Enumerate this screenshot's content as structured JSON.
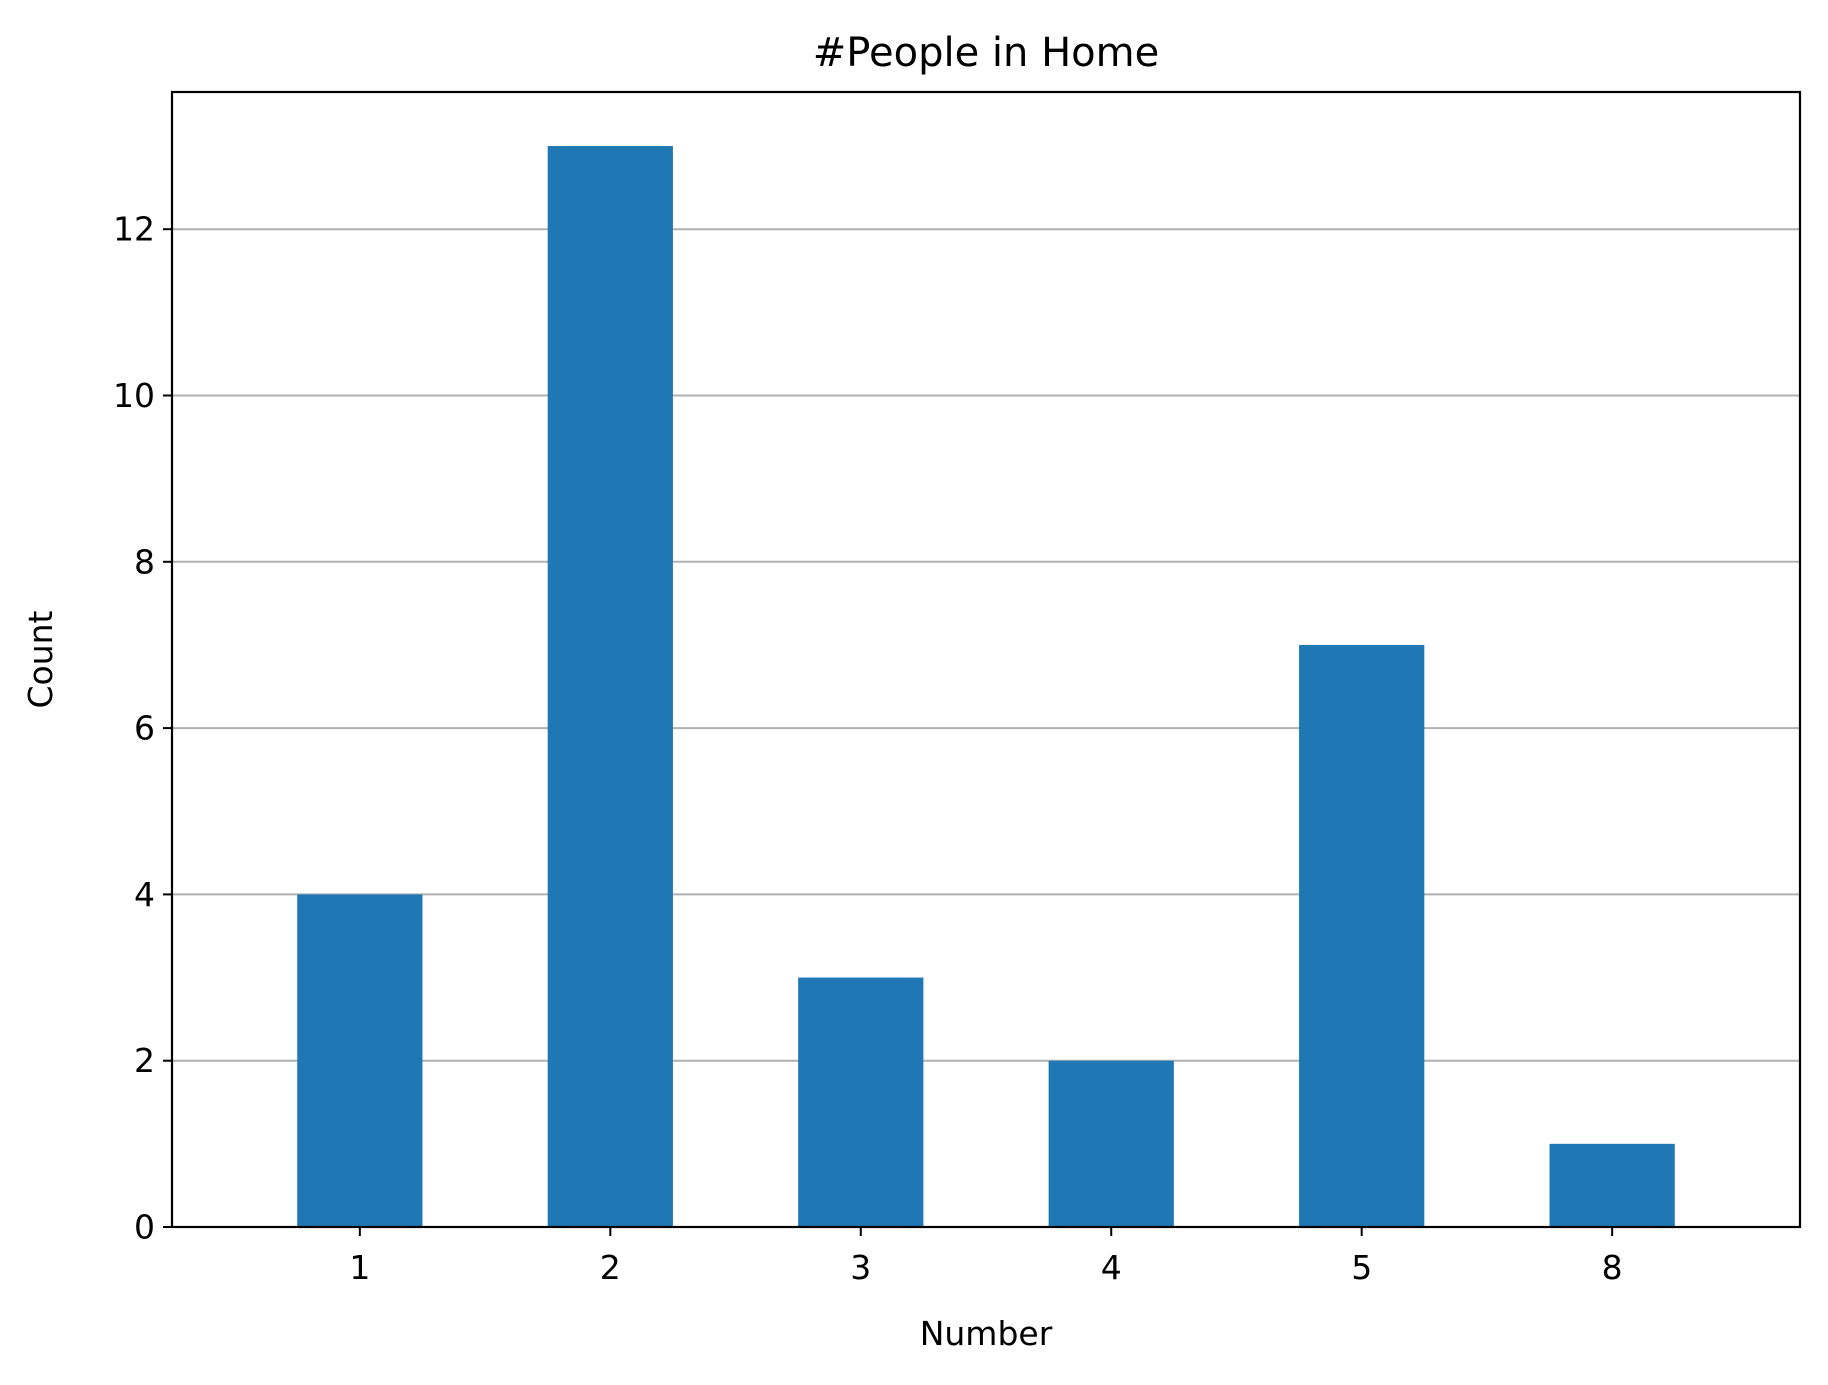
{
  "chart_data": {
    "type": "bar",
    "title": "#People in Home",
    "xlabel": "Number",
    "ylabel": "Count",
    "categories": [
      "1",
      "2",
      "3",
      "4",
      "5",
      "8"
    ],
    "values": [
      4,
      13,
      3,
      2,
      7,
      1
    ],
    "ylim": [
      0,
      13.65
    ],
    "yticks": [
      0,
      2,
      4,
      6,
      8,
      10,
      12
    ],
    "grid": "y",
    "legend": "none",
    "colors": {
      "bar": "#1f77b4",
      "grid": "#b0b0b0",
      "axis": "#000000"
    }
  }
}
